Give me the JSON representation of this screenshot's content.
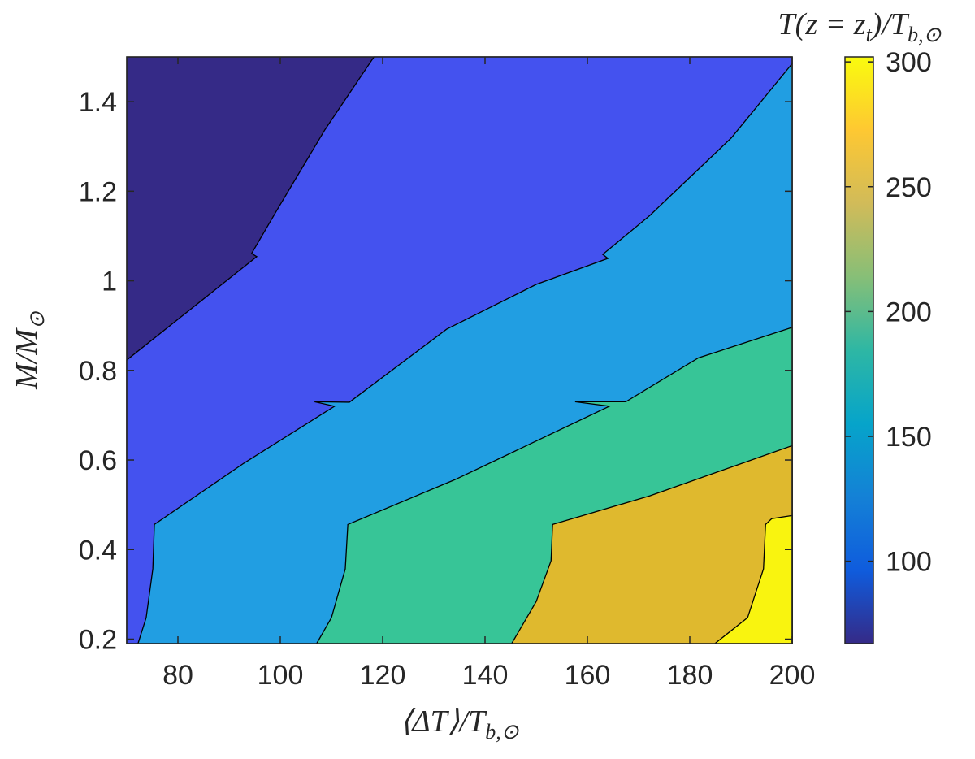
{
  "chart_data": {
    "type": "contourf",
    "xlabel": [
      {
        "text": "⟨ΔT⟩/T",
        "sub": false
      },
      {
        "text": "b,⊙",
        "sub": true
      }
    ],
    "ylabel": [
      {
        "text": "M/M",
        "sub": false
      },
      {
        "text": "⊙",
        "sub": true
      }
    ],
    "xlim": [
      70,
      200
    ],
    "xticks": [
      80,
      100,
      120,
      140,
      160,
      180,
      200
    ],
    "ylim": [
      0.19,
      1.5
    ],
    "yticks": [
      0.2,
      0.4,
      0.6,
      0.8,
      1,
      1.2,
      1.4
    ],
    "regions": [
      {
        "level": 75,
        "color": "#352a87",
        "x": [
          70,
          200,
          200,
          70
        ],
        "y": [
          0.19,
          0.19,
          1.5,
          1.5
        ]
      },
      {
        "level": 100,
        "color": "#4452ef",
        "x": [
          70,
          70,
          95.4,
          94.4,
          99.2,
          108.7,
          118.3,
          200,
          200
        ],
        "y": [
          0.19,
          0.823,
          1.054,
          1.061,
          1.155,
          1.337,
          1.5,
          1.5,
          0.19
        ]
      },
      {
        "level": 150,
        "color": "#219ee2",
        "x": [
          72.2,
          73.8,
          75.1,
          75.4,
          92.9,
          110.6,
          106.7,
          113.5,
          132.5,
          150,
          164,
          163,
          172.2,
          188.1,
          200,
          200
        ],
        "y": [
          0.19,
          0.248,
          0.357,
          0.456,
          0.593,
          0.72,
          0.73,
          0.729,
          0.892,
          0.992,
          1.05,
          1.059,
          1.146,
          1.319,
          1.485,
          0.19
        ]
      },
      {
        "level": 200,
        "color": "#37c597",
        "x": [
          107.1,
          110,
          112.7,
          113.2,
          134.1,
          164.3,
          157.6,
          167.5,
          181.7,
          200,
          200
        ],
        "y": [
          0.19,
          0.248,
          0.357,
          0.456,
          0.556,
          0.72,
          0.73,
          0.73,
          0.828,
          0.896,
          0.19
        ]
      },
      {
        "level": 250,
        "color": "#dfb92e",
        "x": [
          145.2,
          150,
          152.9,
          153.2,
          172.2,
          200,
          200
        ],
        "y": [
          0.19,
          0.284,
          0.375,
          0.456,
          0.52,
          0.632,
          0.19
        ]
      },
      {
        "level": 300,
        "color": "#f9f40f",
        "x": [
          184.9,
          191.3,
          194.4,
          194.8,
          196,
          200,
          200
        ],
        "y": [
          0.19,
          0.248,
          0.357,
          0.456,
          0.469,
          0.476,
          0.19
        ]
      }
    ],
    "colorbar": {
      "label": [
        {
          "text": "T(z = z",
          "sub": false
        },
        {
          "text": "t",
          "sub": true
        },
        {
          "text": ")/T",
          "sub": false
        },
        {
          "text": "b,⊙",
          "sub": true
        }
      ],
      "lim": [
        67,
        302
      ],
      "ticks": [
        100,
        150,
        200,
        250,
        300
      ],
      "colors": [
        "#352a87",
        "#0f5cdd",
        "#1481d6",
        "#06a4ca",
        "#2eb7a4",
        "#87bf77",
        "#d1bb59",
        "#fec832",
        "#f9fb0e"
      ]
    }
  }
}
